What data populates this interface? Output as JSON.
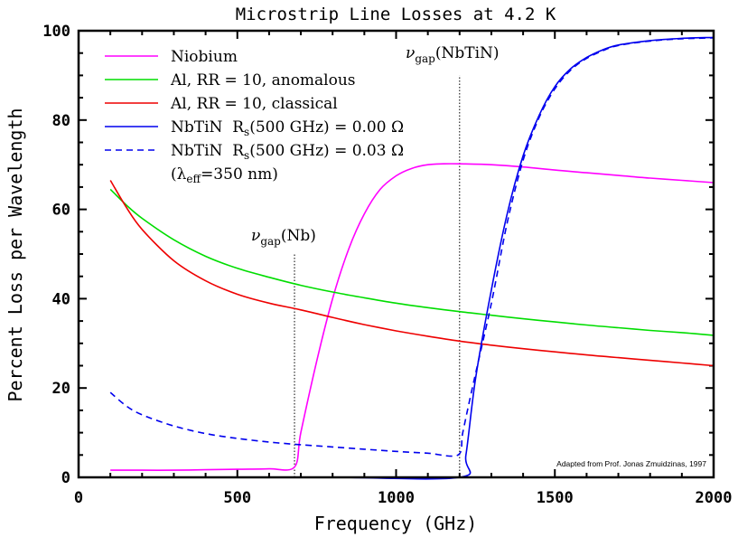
{
  "chart_data": {
    "type": "line",
    "title": "Microstrip Line Losses at 4.2 K",
    "xlabel": "Frequency (GHz)",
    "ylabel": "Percent Loss per Wavelength",
    "xlim": [
      0,
      2000
    ],
    "ylim": [
      0,
      100
    ],
    "xticks": [
      0,
      500,
      1000,
      1500,
      2000
    ],
    "xtick_labels": [
      "0",
      "500",
      "1000",
      "1500",
      "2000"
    ],
    "yticks": [
      0,
      20,
      40,
      60,
      80,
      100
    ],
    "ytick_labels": [
      "0",
      "20",
      "40",
      "60",
      "80",
      "100"
    ],
    "x_minor_step": 100,
    "y_minor_step": 5,
    "grid": false,
    "legend_position": "top-left",
    "series": [
      {
        "name": "Niobium",
        "label": "Niobium",
        "color": "#ff00ff",
        "dash": "solid",
        "x": [
          100,
          200,
          300,
          400,
          500,
          600,
          680,
          700,
          750,
          800,
          850,
          900,
          950,
          1000,
          1050,
          1100,
          1150,
          1200,
          1300,
          1400,
          1500,
          1600,
          1700,
          1800,
          1900,
          2000
        ],
        "y": [
          1.6,
          1.6,
          1.6,
          1.7,
          1.8,
          1.9,
          2.3,
          10,
          26,
          40,
          51,
          59,
          64.5,
          67.5,
          69.2,
          70,
          70.2,
          70.2,
          70,
          69.5,
          68.8,
          68.2,
          67.6,
          67,
          66.5,
          66
        ]
      },
      {
        "name": "Al, RR = 10, anomalous",
        "label_main": "Al, RR = 10, anomalous",
        "color": "#00dd00",
        "dash": "solid",
        "x": [
          100,
          150,
          200,
          300,
          400,
          500,
          600,
          700,
          800,
          900,
          1000,
          1100,
          1200,
          1300,
          1400,
          1500,
          1600,
          1700,
          1800,
          1900,
          2000
        ],
        "y": [
          64.5,
          61,
          58,
          53.2,
          49.5,
          46.8,
          44.8,
          43,
          41.5,
          40.2,
          39,
          38,
          37.1,
          36.3,
          35.5,
          34.8,
          34.1,
          33.5,
          32.9,
          32.4,
          31.8
        ]
      },
      {
        "name": "Al, RR = 10, classical",
        "label_main": "Al, RR = 10, classical",
        "color": "#ee0000",
        "dash": "solid",
        "x": [
          100,
          150,
          200,
          300,
          400,
          500,
          600,
          700,
          800,
          900,
          1000,
          1100,
          1200,
          1300,
          1400,
          1500,
          1600,
          1700,
          1800,
          1900,
          2000
        ],
        "y": [
          66.5,
          60.5,
          55.5,
          48.5,
          44,
          41,
          39,
          37.5,
          35.8,
          34.2,
          32.8,
          31.6,
          30.5,
          29.6,
          28.8,
          28.1,
          27.4,
          26.8,
          26.2,
          25.6,
          25
        ]
      },
      {
        "name": "NbTiN Rs(500 GHz) = 0.00 Ω",
        "label_main": "NbTiN  R",
        "label_sub": "s",
        "label_rest": "(500 GHz) = 0.00 Ω",
        "color": "#0000ee",
        "dash": "solid",
        "x": [
          100,
          400,
          800,
          1200,
          1220,
          1250,
          1300,
          1350,
          1400,
          1450,
          1500,
          1550,
          1600,
          1650,
          1700,
          1800,
          1900,
          2000
        ],
        "y": [
          0,
          0,
          0,
          0,
          5,
          22,
          42,
          59,
          72,
          81,
          87.5,
          91.5,
          94,
          95.7,
          96.8,
          97.8,
          98.3,
          98.5
        ]
      },
      {
        "name": "NbTiN Rs(500 GHz) = 0.03 Ω",
        "label_main": "NbTiN  R",
        "label_sub": "s",
        "label_rest": "(500 GHz) = 0.03 Ω",
        "color": "#0000ee",
        "dash": "dashed",
        "x": [
          100,
          150,
          200,
          300,
          400,
          500,
          600,
          680,
          700,
          800,
          900,
          1000,
          1100,
          1195,
          1210,
          1240,
          1300,
          1350,
          1400,
          1450,
          1500,
          1550,
          1600,
          1650,
          1700,
          1800,
          1900,
          2000
        ],
        "y": [
          19,
          16,
          14,
          11.5,
          9.8,
          8.7,
          7.9,
          7.4,
          7.3,
          6.8,
          6.3,
          5.8,
          5.4,
          5.0,
          10,
          20,
          39,
          57,
          71,
          80.5,
          87,
          91.2,
          93.8,
          95.5,
          96.7,
          97.7,
          98.2,
          98.4
        ]
      }
    ],
    "legend_note": {
      "prefix": "(λ",
      "sub": "eff",
      "suffix": "=350 nm)"
    },
    "annotations": [
      {
        "id": "nb-gap",
        "symbol": "ν",
        "sub": "gap",
        "text": "(Nb)",
        "x": 680,
        "line_top_y": 50
      },
      {
        "id": "nbtin-gap",
        "symbol": "ν",
        "sub": "gap",
        "text": "(NbTiN)",
        "x": 1200,
        "line_top_y": 90
      }
    ],
    "credit": "Adapted from Prof. Jonas Zmuidzinas, 1997"
  }
}
